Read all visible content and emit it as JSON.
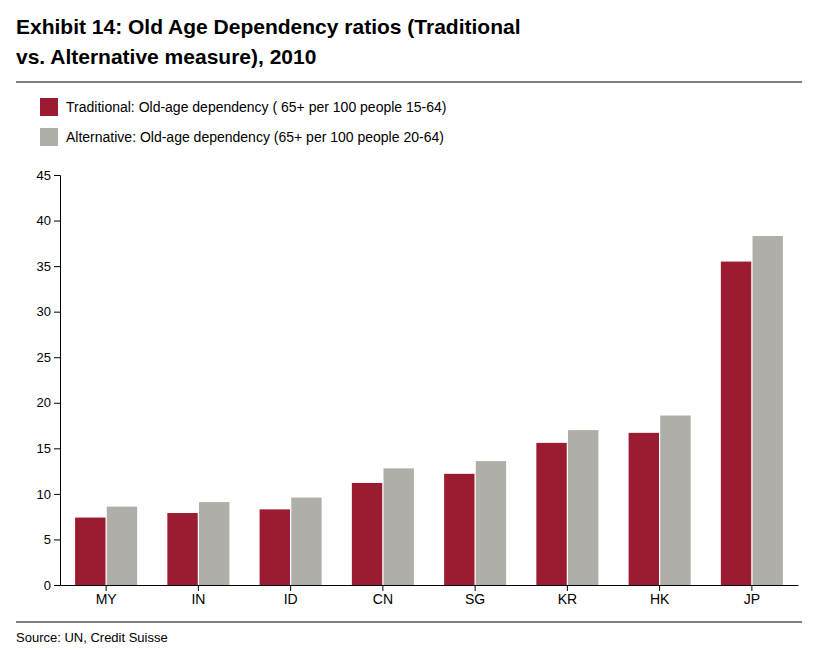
{
  "chart_data": {
    "type": "bar",
    "title": [
      "Exhibit 14: Old Age Dependency ratios (Traditional",
      "vs. Alternative measure), 2010"
    ],
    "categories": [
      "MY",
      "IN",
      "ID",
      "CN",
      "SG",
      "KR",
      "HK",
      "JP"
    ],
    "series": [
      {
        "name": "Traditional: Old-age dependency ( 65+ per 100 people 15-64)",
        "color": "#9B1B30",
        "values": [
          7.4,
          7.9,
          8.3,
          11.2,
          12.2,
          15.6,
          16.7,
          35.5
        ]
      },
      {
        "name": "Alternative: Old-age dependency (65+ per 100 people 20-64)",
        "color": "#B0AEA8",
        "values": [
          8.6,
          9.1,
          9.6,
          12.8,
          13.6,
          17.0,
          18.6,
          38.3
        ]
      }
    ],
    "ylim": [
      0,
      45
    ],
    "yticks": [
      0,
      5,
      10,
      15,
      20,
      25,
      30,
      35,
      40,
      45
    ],
    "grid": false,
    "legend": "top",
    "annotations": [
      "Source: UN, Credit Suisse"
    ]
  }
}
